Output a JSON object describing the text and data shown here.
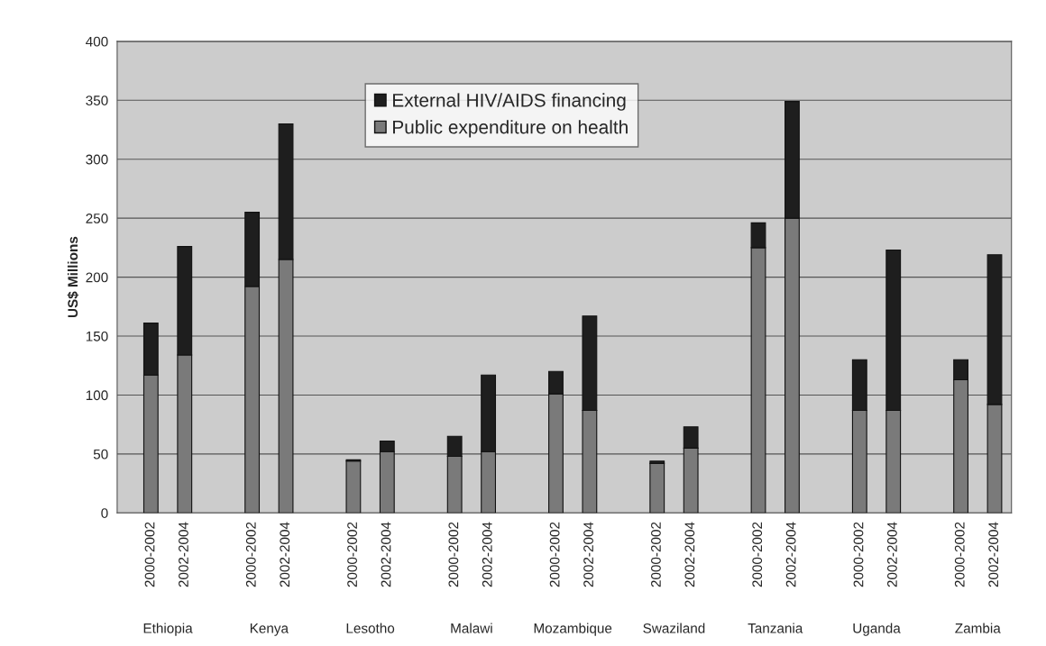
{
  "chart_data": {
    "type": "bar",
    "stacked": true,
    "ylabel": "US$ Millions",
    "categories": [
      "2000-2002",
      "2002-2004",
      "2000-2002",
      "2002-2004",
      "2000-2002",
      "2002-2004",
      "2000-2002",
      "2002-2004",
      "2000-2002",
      "2002-2004",
      "2000-2002",
      "2002-2004",
      "2000-2002",
      "2002-2004",
      "2000-2002",
      "2002-2004",
      "2000-2002",
      "2002-2004"
    ],
    "series": [
      {
        "name": "Public expenditure on health",
        "color": "#7a7a7a",
        "values": [
          117,
          134,
          192,
          215,
          44,
          52,
          48,
          52,
          101,
          87,
          42,
          55,
          225,
          250,
          87,
          87,
          113,
          92
        ]
      },
      {
        "name": "External HIV/AIDS financing",
        "color": "#1e1e1e",
        "values": [
          44,
          92,
          63,
          115,
          1,
          9,
          17,
          65,
          19,
          80,
          2,
          18,
          21,
          99,
          43,
          136,
          17,
          127
        ]
      }
    ],
    "annotations": [
      "Ethiopia",
      "Kenya",
      "Lesotho",
      "Malawi",
      "Mozambique",
      "Swaziland",
      "Tanzania",
      "Uganda",
      "Zambia"
    ],
    "ylim": [
      0,
      400
    ],
    "yticks": [
      0,
      50,
      100,
      150,
      200,
      250,
      300,
      350,
      400
    ],
    "grid": "y",
    "legend": "top"
  }
}
